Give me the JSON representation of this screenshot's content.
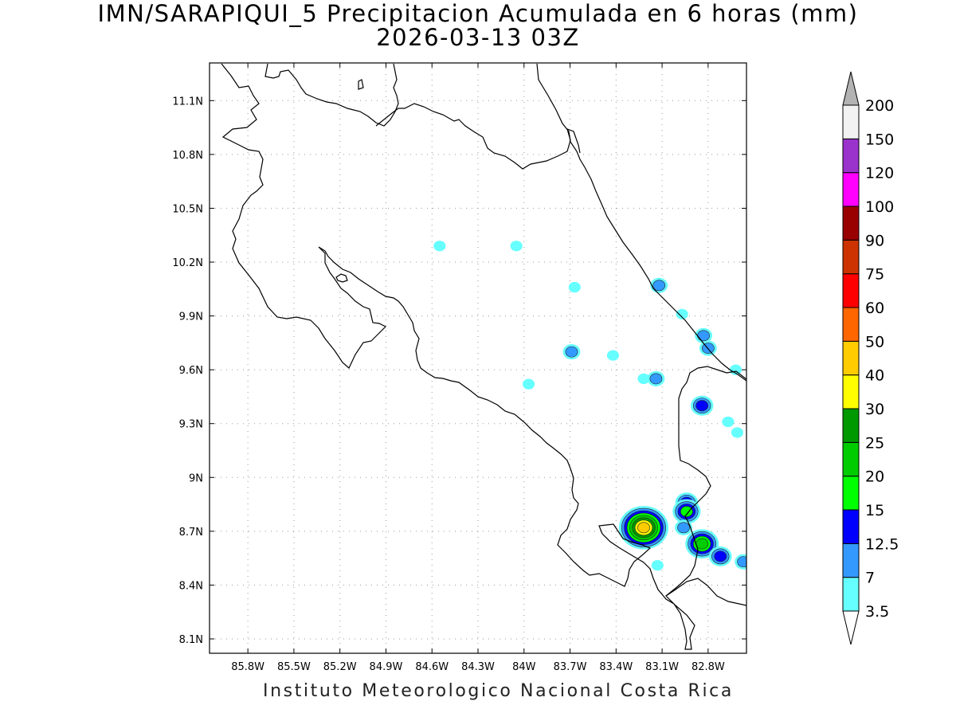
{
  "title": {
    "line1": "IMN/SARAPIQUI_5 Precipitacion Acumulada en 6 horas (mm)",
    "line2": "2026-03-13 03Z"
  },
  "footer": "Instituto Meteorologico Nacional Costa Rica",
  "map": {
    "lon_range": [
      -86.05,
      -82.55
    ],
    "lat_range": [
      8.02,
      11.31
    ],
    "grid": true,
    "x_ticks": [
      "85.8W",
      "85.5W",
      "85.2W",
      "84.9W",
      "84.6W",
      "84.3W",
      "84W",
      "83.7W",
      "83.4W",
      "83.1W",
      "82.8W"
    ],
    "x_tick_values": [
      -85.8,
      -85.5,
      -85.2,
      -84.9,
      -84.6,
      -84.3,
      -84.0,
      -83.7,
      -83.4,
      -83.1,
      -82.8
    ],
    "y_ticks": [
      "8.1N",
      "8.4N",
      "8.7N",
      "9N",
      "9.3N",
      "9.6N",
      "9.9N",
      "10.2N",
      "10.5N",
      "10.8N",
      "11.1N"
    ],
    "y_tick_values": [
      8.1,
      8.4,
      8.7,
      9.0,
      9.3,
      9.6,
      9.9,
      10.2,
      10.5,
      10.8,
      11.1
    ]
  },
  "colorbar": {
    "labels": [
      "3.5",
      "7",
      "12.5",
      "15",
      "20",
      "25",
      "30",
      "40",
      "50",
      "60",
      "75",
      "90",
      "100",
      "120",
      "150",
      "200"
    ],
    "colors": [
      "#ffffff",
      "#66ffff",
      "#3399ff",
      "#0000ff",
      "#00ff00",
      "#00cc00",
      "#009900",
      "#ffff00",
      "#ffcc00",
      "#ff6600",
      "#ff0000",
      "#cc3300",
      "#990000",
      "#ff00ff",
      "#9933cc",
      "#f2f2f2",
      "#b3b3b3"
    ]
  },
  "precip_cells": [
    {
      "lon": -84.55,
      "lat": 10.29,
      "mm": 3.5
    },
    {
      "lon": -84.05,
      "lat": 10.29,
      "mm": 3.5
    },
    {
      "lon": -83.67,
      "lat": 10.06,
      "mm": 3.5
    },
    {
      "lon": -83.12,
      "lat": 10.07,
      "mm": 7
    },
    {
      "lon": -82.97,
      "lat": 9.91,
      "mm": 3.5
    },
    {
      "lon": -82.83,
      "lat": 9.79,
      "mm": 7
    },
    {
      "lon": -82.8,
      "lat": 9.72,
      "mm": 7
    },
    {
      "lon": -83.69,
      "lat": 9.7,
      "mm": 7
    },
    {
      "lon": -83.42,
      "lat": 9.68,
      "mm": 3.5
    },
    {
      "lon": -83.22,
      "lat": 9.55,
      "mm": 3.5
    },
    {
      "lon": -83.14,
      "lat": 9.55,
      "mm": 7
    },
    {
      "lon": -83.97,
      "lat": 9.52,
      "mm": 3.5
    },
    {
      "lon": -82.84,
      "lat": 9.4,
      "mm": 12.5
    },
    {
      "lon": -82.67,
      "lat": 9.31,
      "mm": 3.5
    },
    {
      "lon": -82.61,
      "lat": 9.25,
      "mm": 3.5
    },
    {
      "lon": -82.62,
      "lat": 9.6,
      "mm": 3.5
    },
    {
      "lon": -82.94,
      "lat": 8.86,
      "mm": 12.5
    },
    {
      "lon": -82.94,
      "lat": 8.81,
      "mm": 15
    },
    {
      "lon": -83.22,
      "lat": 8.72,
      "mm": 40
    },
    {
      "lon": -82.96,
      "lat": 8.72,
      "mm": 7
    },
    {
      "lon": -82.84,
      "lat": 8.63,
      "mm": 20
    },
    {
      "lon": -82.72,
      "lat": 8.56,
      "mm": 12.5
    },
    {
      "lon": -82.57,
      "lat": 8.53,
      "mm": 7
    },
    {
      "lon": -83.13,
      "lat": 8.51,
      "mm": 3.5
    }
  ]
}
